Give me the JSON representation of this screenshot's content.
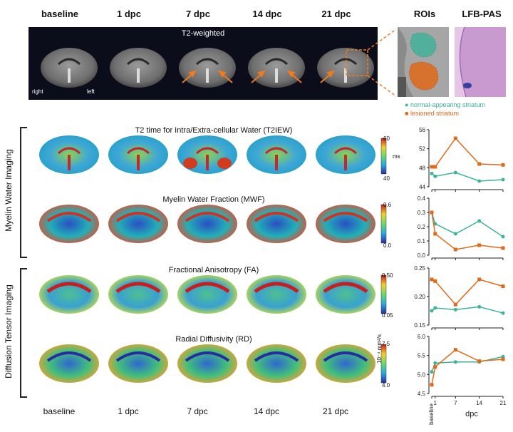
{
  "headers": [
    "baseline",
    "1 dpc",
    "7 dpc",
    "14 dpc",
    "21 dpc"
  ],
  "roi_header": "ROIs",
  "lfb_header": "LFB-PAS",
  "t2w": {
    "title": "T2-weighted",
    "right": "right",
    "left": "left"
  },
  "legend": {
    "normal": "normal-appearing striatum",
    "lesion": "lesioned striatum",
    "normal_color": "#3cb39a",
    "lesion_color": "#e06a1a"
  },
  "groups": {
    "myelin": "Myelin Water Imaging",
    "dti": "Diffusion Tensor Imaging"
  },
  "rows": [
    {
      "title": "T2 time for Intra/Extra-cellular Water (T2IEW)",
      "cmax": "60",
      "cmin": "40",
      "unit": "ms"
    },
    {
      "title": "Myelin Water Fraction (MWF)",
      "cmax": "0.6",
      "cmin": "0.0",
      "unit": ""
    },
    {
      "title": "Fractional Anisotropy (FA)",
      "cmax": "0.50",
      "cmin": "0.05",
      "unit": ""
    },
    {
      "title": "Radial Diffusivity (RD)",
      "cmax": "7.5",
      "cmin": "4.0",
      "unit": "10⁻⁴ mm²/s"
    }
  ],
  "bottom_labels": [
    "baseline",
    "1 dpc",
    "7 dpc",
    "14 dpc",
    "21 dpc"
  ],
  "chart_data": [
    {
      "type": "line",
      "x": [
        0,
        1,
        7,
        14,
        21
      ],
      "ylim": [
        44,
        56
      ],
      "yticks": [
        "56",
        "52",
        "48",
        "44"
      ],
      "series": [
        {
          "name": "normal-appearing striatum",
          "values": [
            46.8,
            46.2,
            47.0,
            45.2,
            45.5
          ]
        },
        {
          "name": "lesioned striatum",
          "values": [
            48.2,
            48.2,
            54.2,
            48.8,
            48.6
          ]
        }
      ]
    },
    {
      "type": "line",
      "x": [
        0,
        1,
        7,
        14,
        21
      ],
      "ylim": [
        0.0,
        0.4
      ],
      "yticks": [
        "0.4",
        "0.3",
        "0.2",
        "0.1",
        "0.0"
      ],
      "series": [
        {
          "name": "normal-appearing striatum",
          "values": [
            0.3,
            0.22,
            0.15,
            0.24,
            0.13
          ]
        },
        {
          "name": "lesioned striatum",
          "values": [
            0.3,
            0.15,
            0.04,
            0.07,
            0.05
          ]
        }
      ]
    },
    {
      "type": "line",
      "x": [
        0,
        1,
        7,
        14,
        21
      ],
      "ylim": [
        0.15,
        0.25
      ],
      "yticks": [
        "0.25",
        "0.20",
        "0.15"
      ],
      "series": [
        {
          "name": "normal-appearing striatum",
          "values": [
            0.175,
            0.18,
            0.177,
            0.182,
            0.171
          ]
        },
        {
          "name": "lesioned striatum",
          "values": [
            0.23,
            0.227,
            0.186,
            0.23,
            0.218
          ]
        }
      ]
    },
    {
      "type": "line",
      "x": [
        0,
        1,
        7,
        14,
        21
      ],
      "ylim": [
        4.5,
        6.0
      ],
      "yticks": [
        "6.0",
        "5.5",
        "5.0",
        "4.5"
      ],
      "xticks": [
        "baseline",
        "1",
        "7",
        "14",
        "21"
      ],
      "xlabel": "dpc",
      "series": [
        {
          "name": "normal-appearing striatum",
          "values": [
            5.07,
            5.3,
            5.33,
            5.33,
            5.47
          ]
        },
        {
          "name": "lesioned striatum",
          "values": [
            4.73,
            5.2,
            5.65,
            5.35,
            5.4
          ]
        }
      ]
    }
  ]
}
